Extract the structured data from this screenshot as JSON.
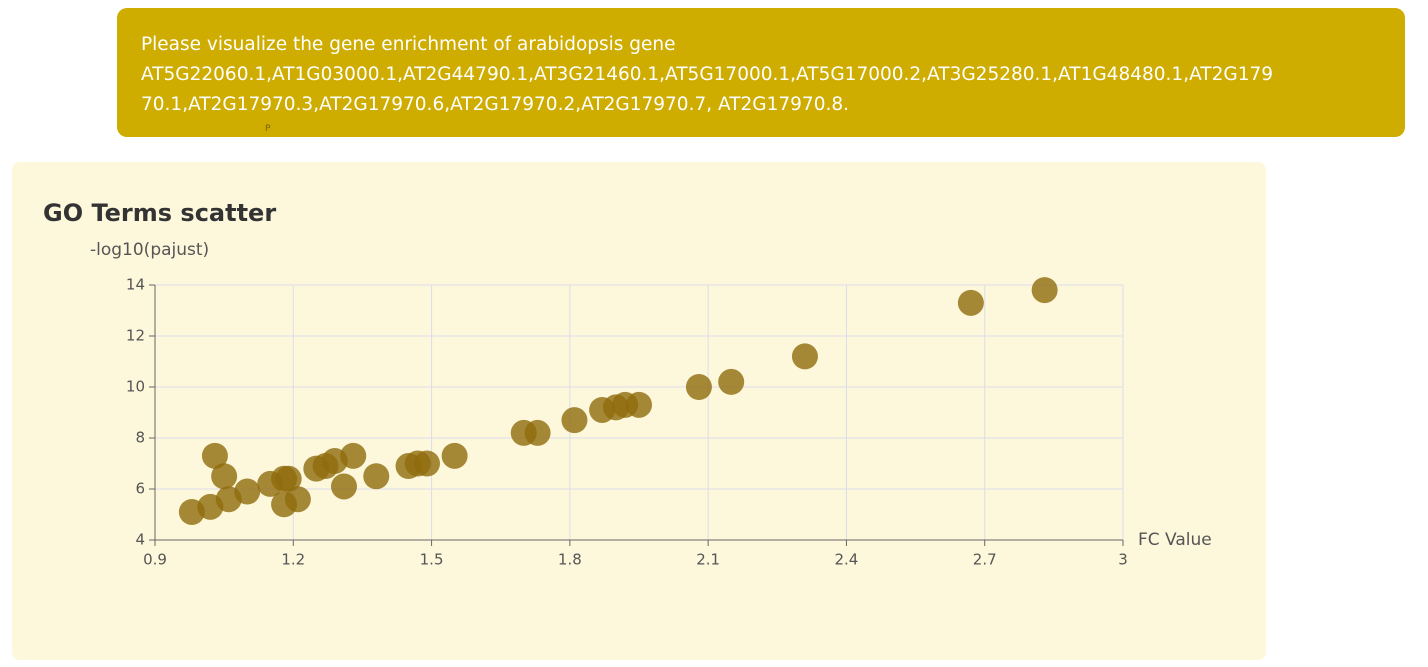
{
  "message": {
    "lines": [
      "Please visualize the gene enrichment of arabidopsis gene",
      "AT5G22060.1,AT1G03000.1,AT2G44790.1,AT3G21460.1,AT5G17000.1,AT5G17000.2,AT3G25280.1,AT1G48480.1,AT2G179",
      "70.1,AT2G17970.3,AT2G17970.6,AT2G17970.2,AT2G17970.7, AT2G17970.8."
    ],
    "mark": "P"
  },
  "chart_data": {
    "type": "scatter",
    "title": "GO Terms scatter",
    "y_label": "-log10(pajust)",
    "x_label": "FC Value",
    "color": "#8f6b0c",
    "x": [
      0.98,
      1.02,
      1.03,
      1.05,
      1.06,
      1.1,
      1.15,
      1.18,
      1.18,
      1.19,
      1.21,
      1.25,
      1.27,
      1.29,
      1.31,
      1.33,
      1.38,
      1.45,
      1.47,
      1.49,
      1.55,
      1.7,
      1.73,
      1.81,
      1.87,
      1.9,
      1.92,
      1.95,
      2.08,
      2.15,
      2.31,
      2.67,
      2.83
    ],
    "values": [
      5.1,
      5.3,
      7.3,
      6.5,
      5.6,
      5.9,
      6.2,
      5.4,
      6.4,
      6.4,
      5.6,
      6.8,
      6.9,
      7.1,
      6.1,
      7.3,
      6.5,
      6.9,
      7.0,
      7.0,
      7.3,
      8.2,
      8.2,
      8.7,
      9.1,
      9.2,
      9.3,
      9.3,
      10.0,
      10.2,
      11.2,
      13.3,
      13.8
    ],
    "xlim": [
      0.9,
      3
    ],
    "xticks": [
      0.9,
      1.2,
      1.5,
      1.8,
      2.1,
      2.4,
      2.7,
      3
    ],
    "ylim": [
      4,
      14
    ],
    "yticks": [
      4,
      6,
      8,
      10,
      12,
      14
    ],
    "grid": true
  }
}
